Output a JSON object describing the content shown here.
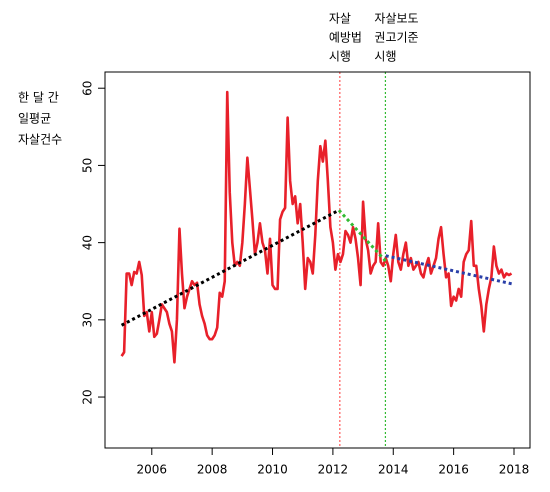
{
  "chart_data": {
    "type": "line",
    "y_label": [
      "한 달 간",
      "일평균",
      "자살건수"
    ],
    "xlim": [
      2004.45,
      2018.53
    ],
    "ylim": [
      13.4,
      62.1
    ],
    "xticks": [
      2006,
      2008,
      2010,
      2012,
      2014,
      2016,
      2018
    ],
    "yticks": [
      20,
      30,
      40,
      50,
      60
    ],
    "x": [
      2005,
      2005.083,
      2005.167,
      2005.25,
      2005.333,
      2005.417,
      2005.5,
      2005.583,
      2005.667,
      2005.75,
      2005.833,
      2005.917,
      2006,
      2006.083,
      2006.167,
      2006.25,
      2006.333,
      2006.417,
      2006.5,
      2006.583,
      2006.667,
      2006.75,
      2006.833,
      2006.917,
      2007,
      2007.083,
      2007.167,
      2007.25,
      2007.333,
      2007.417,
      2007.5,
      2007.583,
      2007.667,
      2007.75,
      2007.833,
      2007.917,
      2008,
      2008.083,
      2008.167,
      2008.25,
      2008.333,
      2008.417,
      2008.5,
      2008.583,
      2008.667,
      2008.75,
      2008.833,
      2008.917,
      2009,
      2009.083,
      2009.167,
      2009.25,
      2009.333,
      2009.417,
      2009.5,
      2009.583,
      2009.667,
      2009.75,
      2009.833,
      2009.917,
      2010,
      2010.083,
      2010.167,
      2010.25,
      2010.333,
      2010.417,
      2010.5,
      2010.583,
      2010.667,
      2010.75,
      2010.833,
      2010.917,
      2011,
      2011.083,
      2011.167,
      2011.25,
      2011.333,
      2011.417,
      2011.5,
      2011.583,
      2011.667,
      2011.75,
      2011.833,
      2011.917,
      2012,
      2012.083,
      2012.167,
      2012.25,
      2012.333,
      2012.417,
      2012.5,
      2012.583,
      2012.667,
      2012.75,
      2012.833,
      2012.917,
      2013,
      2013.083,
      2013.167,
      2013.25,
      2013.333,
      2013.417,
      2013.5,
      2013.583,
      2013.667,
      2013.75,
      2013.833,
      2013.917,
      2014,
      2014.083,
      2014.167,
      2014.25,
      2014.333,
      2014.417,
      2014.5,
      2014.583,
      2014.667,
      2014.75,
      2014.833,
      2014.917,
      2015,
      2015.083,
      2015.167,
      2015.25,
      2015.333,
      2015.417,
      2015.5,
      2015.583,
      2015.667,
      2015.75,
      2015.833,
      2015.917,
      2016,
      2016.083,
      2016.167,
      2016.25,
      2016.333,
      2016.417,
      2016.5,
      2016.583,
      2016.667,
      2016.75,
      2016.833,
      2016.917,
      2017,
      2017.083,
      2017.167,
      2017.25,
      2017.333,
      2017.417,
      2017.5,
      2017.583,
      2017.667,
      2017.75,
      2017.833,
      2017.917
    ],
    "series": [
      {
        "color": "#e8202a",
        "values": [
          25.3,
          25.8,
          36,
          36,
          34.5,
          36.2,
          36,
          37.5,
          35.8,
          30.5,
          31,
          28.5,
          31,
          27.8,
          28.2,
          30,
          32,
          31.5,
          31,
          29.5,
          28.5,
          24.5,
          30,
          41.8,
          36,
          31.5,
          33,
          34,
          35,
          34.5,
          34.8,
          32,
          30.5,
          29.5,
          28,
          27.5,
          27.5,
          28,
          29,
          33.5,
          33,
          35,
          59.5,
          46.5,
          40,
          37,
          37.5,
          37,
          40,
          45,
          51,
          47,
          43,
          38.5,
          40,
          42.5,
          40,
          39,
          36,
          40.5,
          34.5,
          34,
          34,
          43,
          44,
          44.5,
          56.2,
          48,
          45,
          46,
          42.5,
          45,
          40,
          34,
          38,
          37.5,
          36,
          41,
          48,
          52.5,
          50.5,
          53.2,
          48,
          42,
          40,
          36.5,
          38.5,
          37.5,
          38.5,
          41.5,
          41,
          40,
          42,
          40.5,
          38,
          34.5,
          45.3,
          40.5,
          39,
          36,
          37,
          37.5,
          42.5,
          37.5,
          37,
          38,
          37,
          35,
          38.5,
          41,
          37.5,
          36.5,
          38.5,
          40,
          37,
          38,
          36.5,
          37,
          37.5,
          36,
          35.5,
          37,
          38,
          36,
          37,
          38,
          40.5,
          42,
          38.5,
          35.5,
          36,
          31.8,
          33,
          32.5,
          34,
          33,
          37.5,
          38.5,
          39,
          42.8,
          37,
          37,
          34,
          31.8,
          28.5,
          32,
          34,
          35.5,
          39.5,
          37,
          36,
          36.5,
          35.5,
          36,
          35.8,
          36
        ]
      }
    ],
    "trends": [
      {
        "color": "#000000",
        "x": [
          2005,
          2012.2
        ],
        "values": [
          29.3,
          44.2
        ]
      },
      {
        "color": "#33bb33",
        "x": [
          2012.2,
          2013.75
        ],
        "values": [
          44.2,
          37.6
        ]
      },
      {
        "color": "#2a3fa8",
        "x": [
          2013.75,
          2018
        ],
        "values": [
          38.3,
          34.6
        ]
      }
    ],
    "vlines": [
      {
        "x": 2012.23,
        "color": "#ff5a5a",
        "label": [
          "자살",
          "예방법",
          "시행"
        ]
      },
      {
        "x": 2013.74,
        "color": "#33bb33",
        "label": [
          "자살보도",
          "권고기준",
          "시행"
        ]
      }
    ]
  }
}
